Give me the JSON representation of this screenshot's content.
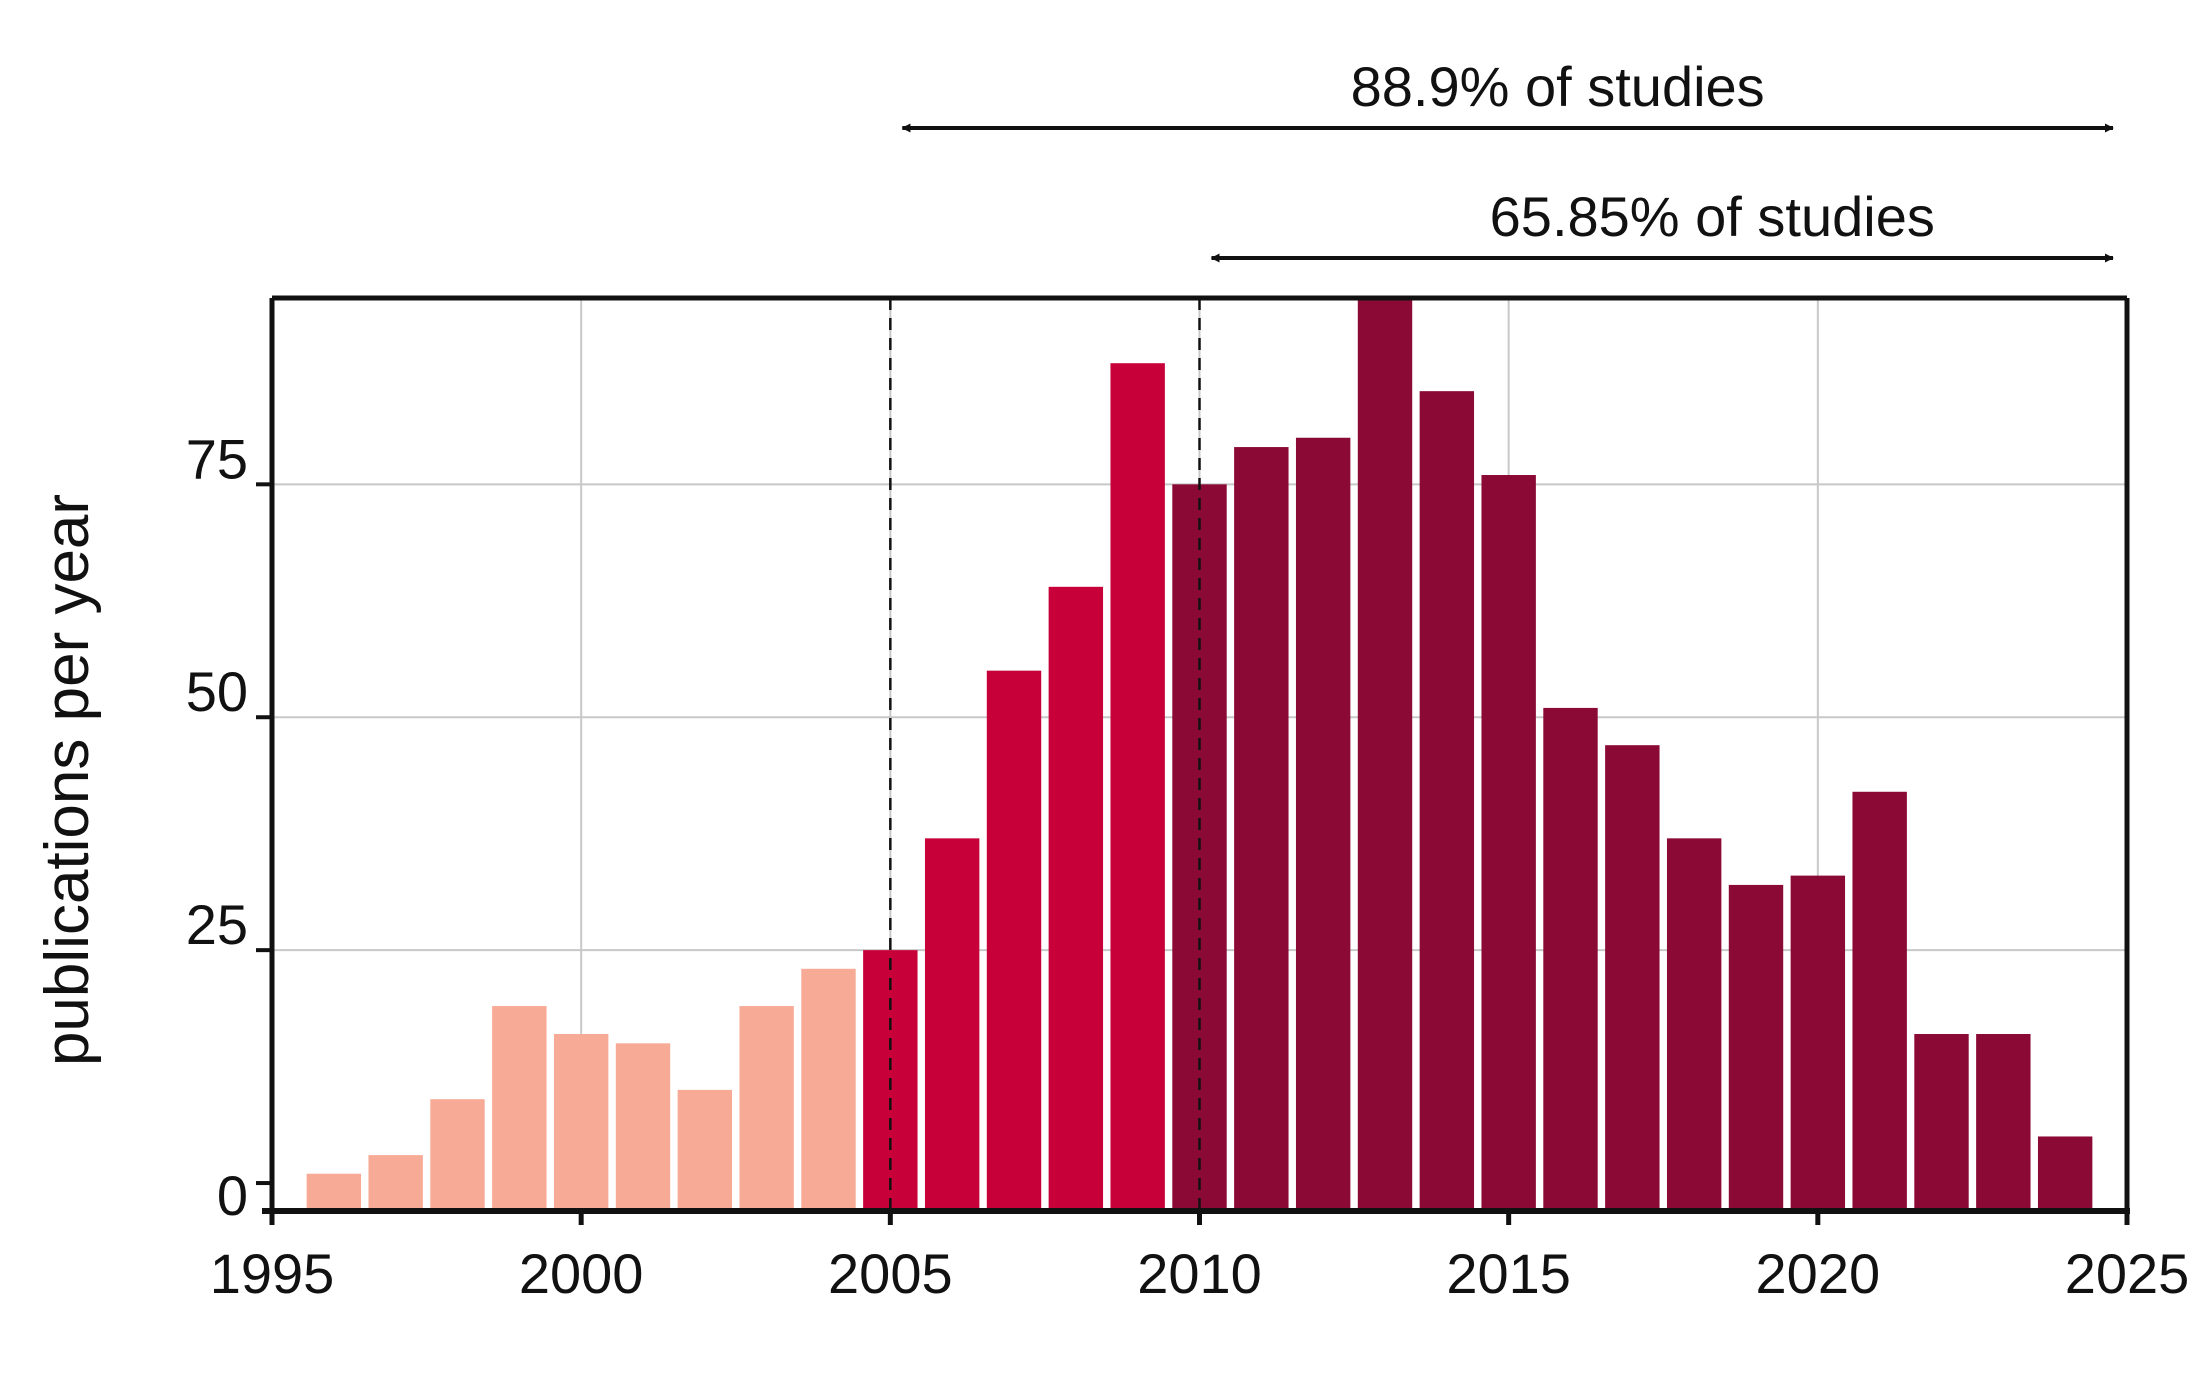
{
  "chart_data": {
    "type": "bar",
    "title": "",
    "xlabel": "",
    "ylabel": "publications per year",
    "x": [
      1996,
      1997,
      1998,
      1999,
      2000,
      2001,
      2002,
      2003,
      2004,
      2005,
      2006,
      2007,
      2008,
      2009,
      2010,
      2011,
      2012,
      2013,
      2014,
      2015,
      2016,
      2017,
      2018,
      2019,
      2020,
      2021,
      2022,
      2023,
      2024
    ],
    "values": [
      1,
      3,
      9,
      19,
      16,
      15,
      10,
      19,
      23,
      25,
      37,
      55,
      64,
      88,
      75,
      79,
      80,
      95,
      85,
      76,
      51,
      47,
      37,
      32,
      33,
      42,
      16,
      16,
      5
    ],
    "bar_groups": [
      2,
      2,
      2,
      2,
      2,
      2,
      2,
      2,
      2,
      1,
      1,
      1,
      1,
      1,
      0,
      0,
      0,
      0,
      0,
      0,
      0,
      0,
      0,
      0,
      0,
      0,
      0,
      0,
      0
    ],
    "colors": [
      "#8b0a35",
      "#c8003a",
      "#f7ab96"
    ],
    "xlim": [
      1995,
      2025
    ],
    "ylim": [
      -3,
      95
    ],
    "x_ticks": [
      "1995",
      "2000",
      "2005",
      "2010",
      "2015",
      "2020",
      "2025"
    ],
    "y_ticks": [
      "0",
      "25",
      "50",
      "75"
    ],
    "y_tick_values": [
      0,
      25,
      50,
      75
    ],
    "grid": true,
    "reference_lines": [
      2005,
      2010
    ],
    "annotations": [
      {
        "label": "88.9% of studies",
        "from": 2005,
        "to": 2025
      },
      {
        "label": "65.85% of studies",
        "from": 2010,
        "to": 2025
      }
    ]
  }
}
